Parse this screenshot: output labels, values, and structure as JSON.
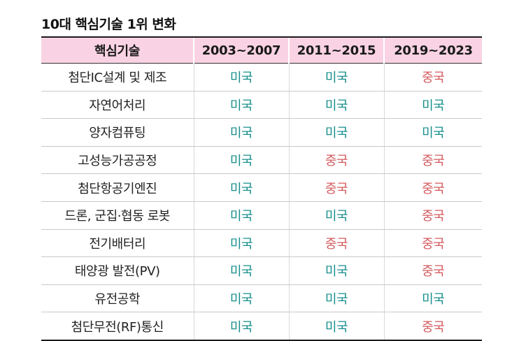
{
  "title": "10대 핵심기술 1위 변화",
  "colors": {
    "header_bg": "#f9d3e3",
    "us_text": "#178f8c",
    "china_text": "#d45a5e"
  },
  "table": {
    "headers": [
      "핵심기술",
      "2003~2007",
      "2011~2015",
      "2019~2023"
    ],
    "rows": [
      {
        "tech": "첨단IC설계 및 제조",
        "p1": "미국",
        "p2": "미국",
        "p3": "중국"
      },
      {
        "tech": "자연어처리",
        "p1": "미국",
        "p2": "미국",
        "p3": "미국"
      },
      {
        "tech": "양자컴퓨팅",
        "p1": "미국",
        "p2": "미국",
        "p3": "미국"
      },
      {
        "tech": "고성능가공공정",
        "p1": "미국",
        "p2": "중국",
        "p3": "중국"
      },
      {
        "tech": "첨단항공기엔진",
        "p1": "미국",
        "p2": "중국",
        "p3": "중국"
      },
      {
        "tech": "드론, 군집·협동 로봇",
        "p1": "미국",
        "p2": "미국",
        "p3": "중국"
      },
      {
        "tech": "전기배터리",
        "p1": "미국",
        "p2": "중국",
        "p3": "중국"
      },
      {
        "tech": "태양광 발전(PV)",
        "p1": "미국",
        "p2": "미국",
        "p3": "중국"
      },
      {
        "tech": "유전공학",
        "p1": "미국",
        "p2": "미국",
        "p3": "미국"
      },
      {
        "tech": "첨단무전(RF)통신",
        "p1": "미국",
        "p2": "미국",
        "p3": "중국"
      }
    ]
  }
}
